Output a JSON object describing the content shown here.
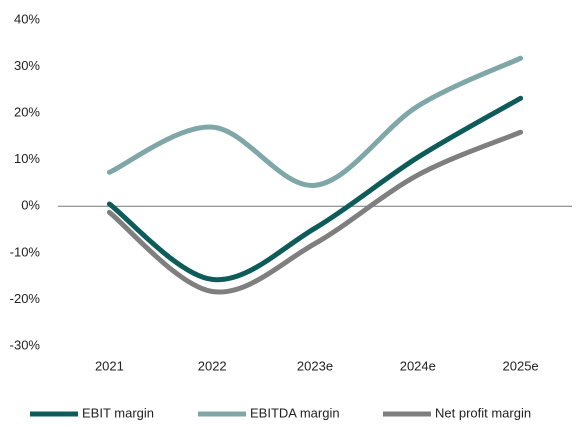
{
  "chart_data": {
    "type": "line",
    "categories": [
      "2021",
      "2022",
      "2023e",
      "2024e",
      "2025e"
    ],
    "series": [
      {
        "name": "EBIT margin",
        "color": "#0d5c5a",
        "values": [
          0.5,
          -15.7,
          -4.7,
          10.5,
          23.2
        ]
      },
      {
        "name": "EBITDA margin",
        "color": "#7fa7a8",
        "values": [
          7.3,
          17,
          4.5,
          21.5,
          31.8
        ]
      },
      {
        "name": "Net profit margin",
        "color": "#7f7f7f",
        "values": [
          -1.3,
          -18.3,
          -8,
          6.7,
          15.9
        ]
      }
    ],
    "ylim": [
      -30,
      40
    ],
    "yticks": [
      {
        "value": -30,
        "label": "-30%"
      },
      {
        "value": -20,
        "label": "-20%"
      },
      {
        "value": -10,
        "label": "-10%"
      },
      {
        "value": 0,
        "label": "0%"
      },
      {
        "value": 10,
        "label": "10%"
      },
      {
        "value": 20,
        "label": "20%"
      },
      {
        "value": 30,
        "label": "30%"
      },
      {
        "value": 40,
        "label": "40%"
      }
    ]
  }
}
